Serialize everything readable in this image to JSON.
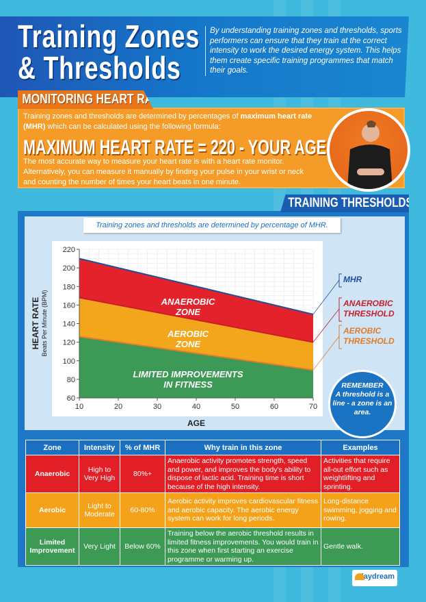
{
  "header": {
    "title_line1": "Training Zones",
    "title_line2": "& Thresholds",
    "intro": "By understanding training zones and thresholds, sports performers can ensure that they train at the correct intensity to work the desired energy system. This helps them create specific training programmes that match their goals."
  },
  "monitoring": {
    "tab": "MONITORING HEART RATE",
    "p1_a": "Training zones and thresholds are determined by percentages of ",
    "p1_b": "maximum heart rate (MHR)",
    "p1_c": " which can be calculated using the following formula:",
    "formula": "MAXIMUM HEART RATE = 220 - YOUR AGE",
    "p2": "The most accurate way to measure your heart rate is with a heart rate monitor. Alternatively, you can measure it manually by finding your pulse in your wrist or neck and counting the number of times your heart beats in one minute."
  },
  "thresholds": {
    "tab": "TRAINING THRESHOLDS",
    "caption": "Training zones and thresholds are determined by percentage of MHR.",
    "remember_title": "REMEMBER",
    "remember_text": "A threshold is a line - a zone is an area."
  },
  "chart_data": {
    "type": "area",
    "xlabel": "AGE",
    "ylabel": "HEART RATE",
    "ylabel_sub": "Beats Per Minute (BPM)",
    "xlim": [
      10,
      70
    ],
    "ylim": [
      60,
      220
    ],
    "xticks": [
      10,
      20,
      30,
      40,
      50,
      60,
      70
    ],
    "yticks": [
      60,
      80,
      100,
      120,
      140,
      160,
      180,
      200,
      220
    ],
    "grid": true,
    "x": [
      10,
      70
    ],
    "series": [
      {
        "name": "MHR",
        "values": [
          210,
          150
        ],
        "color": "#1f4f9c"
      },
      {
        "name": "ANAEROBIC THRESHOLD",
        "values": [
          168,
          120
        ],
        "color": "#c8202a"
      },
      {
        "name": "AEROBIC THRESHOLD",
        "values": [
          126,
          90
        ],
        "color": "#e07b2a"
      }
    ],
    "zones": [
      {
        "label": "ANAEROBIC ZONE",
        "color": "#e3222b"
      },
      {
        "label": "AEROBIC ZONE",
        "color": "#f3a51c"
      },
      {
        "label": "LIMITED IMPROVEMENTS IN FITNESS",
        "color": "#3d9a56"
      }
    ]
  },
  "table": {
    "headers": [
      "Zone",
      "Intensity",
      "% of MHR",
      "Why train in this zone",
      "Examples"
    ],
    "rows": [
      [
        "Anaerobic",
        "High to Very High",
        "80%+",
        "Anaerobic activity promotes strength, speed and power, and improves the body's ability to dispose of lactic acid. Training time is short because of the high intensity.",
        "Activities that require all-out effort such as weightlifting and sprinting."
      ],
      [
        "Aerobic",
        "Light to Moderate",
        "60-80%",
        "Aerobic activity improves cardiovascular fitness and aerobic capacity. The aerobic energy system can work for long periods.",
        "Long-distance swimming, jogging and rowing."
      ],
      [
        "Limited Improvement",
        "Very Light",
        "Below 60%",
        "Training below the aerobic threshold results in limited fitness improvements. You would train in this zone when first starting an exercise programme or warming up.",
        "Gentle walk."
      ]
    ]
  },
  "logo": "daydream"
}
